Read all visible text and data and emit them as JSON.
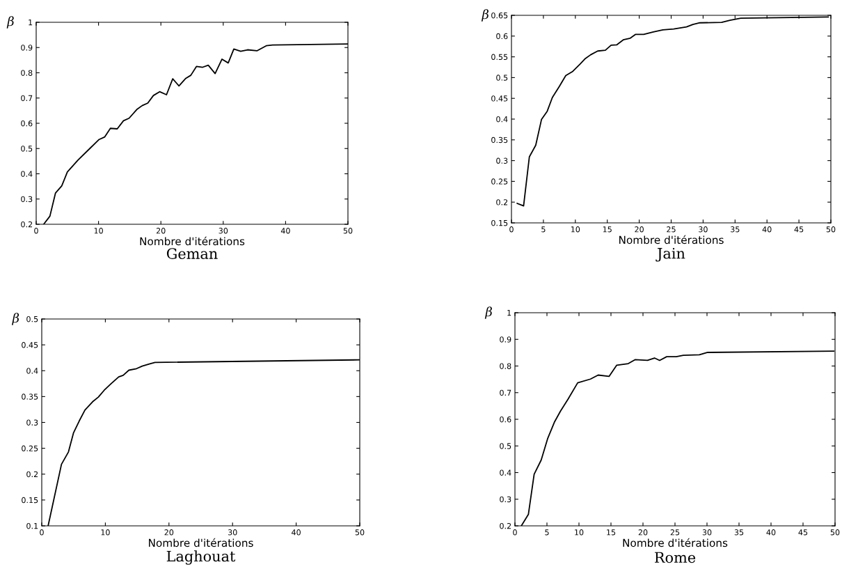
{
  "chart_data": [
    {
      "type": "line",
      "title": "Geman",
      "xlabel": "Nombre d'itérations",
      "ylabel": "β",
      "xlim": [
        0,
        50
      ],
      "ylim": [
        0.2,
        1
      ],
      "xticks": [
        0,
        10,
        20,
        30,
        40,
        50
      ],
      "yticks": [
        0.2,
        0.3,
        0.4,
        0.5,
        0.6,
        0.7,
        0.8,
        0.9,
        1
      ],
      "grid": false,
      "legend": false,
      "series": [
        {
          "color": "#000000",
          "x": [
            1.2,
            2.2,
            3.1,
            4.1,
            5.0,
            6.7,
            8.6,
            10.1,
            11,
            11.9,
            13,
            14,
            14.9,
            16.2,
            17,
            17.9,
            18.8,
            19.8,
            20.9,
            21.9,
            22.9,
            24,
            24.8,
            25.7,
            26.7,
            27.6,
            28.7,
            29.8,
            30.8,
            31.7,
            32.8,
            33.9,
            35.4,
            36.9,
            37.9,
            50
          ],
          "values": [
            0.2,
            0.232,
            0.324,
            0.352,
            0.407,
            0.454,
            0.5,
            0.536,
            0.546,
            0.58,
            0.578,
            0.61,
            0.62,
            0.656,
            0.67,
            0.68,
            0.71,
            0.725,
            0.713,
            0.776,
            0.748,
            0.778,
            0.79,
            0.825,
            0.822,
            0.83,
            0.797,
            0.854,
            0.839,
            0.894,
            0.885,
            0.891,
            0.887,
            0.907,
            0.91,
            0.914
          ]
        }
      ]
    },
    {
      "type": "line",
      "title": "Jain",
      "xlabel": "Nombre d'itérations",
      "ylabel": "β",
      "xlim": [
        0,
        50
      ],
      "ylim": [
        0.15,
        0.65
      ],
      "xticks": [
        0,
        5,
        10,
        15,
        20,
        25,
        30,
        35,
        40,
        45,
        50
      ],
      "yticks": [
        0.15,
        0.2,
        0.25,
        0.3,
        0.35,
        0.4,
        0.45,
        0.5,
        0.55,
        0.6,
        0.65
      ],
      "grid": false,
      "legend": false,
      "series": [
        {
          "color": "#000000",
          "x": [
            0.9,
            1.9,
            2.8,
            3.8,
            4.7,
            5.6,
            6.4,
            7.5,
            8.5,
            9.6,
            10.7,
            11.5,
            12.4,
            13.5,
            14.7,
            15.6,
            16.5,
            17.5,
            18.6,
            19.4,
            20.7,
            22.2,
            23.7,
            25.4,
            27.4,
            28.4,
            29.5,
            32.9,
            34.2,
            35.9,
            49.6
          ],
          "values": [
            0.197,
            0.191,
            0.309,
            0.337,
            0.399,
            0.419,
            0.452,
            0.479,
            0.505,
            0.515,
            0.532,
            0.545,
            0.555,
            0.564,
            0.566,
            0.578,
            0.579,
            0.591,
            0.595,
            0.604,
            0.604,
            0.61,
            0.615,
            0.617,
            0.622,
            0.628,
            0.632,
            0.633,
            0.638,
            0.643,
            0.646
          ]
        }
      ]
    },
    {
      "type": "line",
      "title": "Laghouat",
      "xlabel": "Nombre d'itérations",
      "ylabel": "β",
      "xlim": [
        0,
        50
      ],
      "ylim": [
        0.1,
        0.5
      ],
      "xticks": [
        0,
        10,
        20,
        30,
        40,
        50
      ],
      "yticks": [
        0.1,
        0.15,
        0.2,
        0.25,
        0.3,
        0.35,
        0.4,
        0.45,
        0.5
      ],
      "grid": false,
      "legend": false,
      "series": [
        {
          "color": "#000000",
          "x": [
            1.0,
            3.1,
            4.2,
            5.0,
            5.9,
            6.8,
            8.0,
            8.9,
            9.8,
            10.9,
            12.1,
            12.8,
            13.7,
            14.9,
            15.8,
            16.9,
            17.8,
            50
          ],
          "values": [
            0.1,
            0.219,
            0.243,
            0.28,
            0.303,
            0.324,
            0.34,
            0.349,
            0.362,
            0.375,
            0.388,
            0.391,
            0.401,
            0.404,
            0.409,
            0.413,
            0.416,
            0.421
          ]
        }
      ]
    },
    {
      "type": "line",
      "title": "Rome",
      "xlabel": "Nombre d'itérations",
      "ylabel": "β",
      "xlim": [
        0,
        50
      ],
      "ylim": [
        0.2,
        1
      ],
      "xticks": [
        0,
        5,
        10,
        15,
        20,
        25,
        30,
        35,
        40,
        45,
        50
      ],
      "yticks": [
        0.2,
        0.3,
        0.4,
        0.5,
        0.6,
        0.7,
        0.8,
        0.9,
        1
      ],
      "grid": false,
      "legend": false,
      "series": [
        {
          "color": "#000000",
          "x": [
            1.0,
            2.1,
            3.0,
            4.1,
            5.1,
            6.2,
            7.1,
            8.3,
            9.8,
            11.8,
            13,
            14.7,
            15.9,
            17.7,
            18.8,
            20.7,
            21.8,
            22.6,
            23.7,
            25.2,
            26.3,
            28.8,
            30.1,
            49.8
          ],
          "values": [
            0.2,
            0.243,
            0.394,
            0.447,
            0.527,
            0.591,
            0.63,
            0.676,
            0.737,
            0.751,
            0.766,
            0.761,
            0.803,
            0.809,
            0.824,
            0.821,
            0.83,
            0.821,
            0.835,
            0.835,
            0.84,
            0.842,
            0.851,
            0.856
          ]
        }
      ]
    }
  ]
}
